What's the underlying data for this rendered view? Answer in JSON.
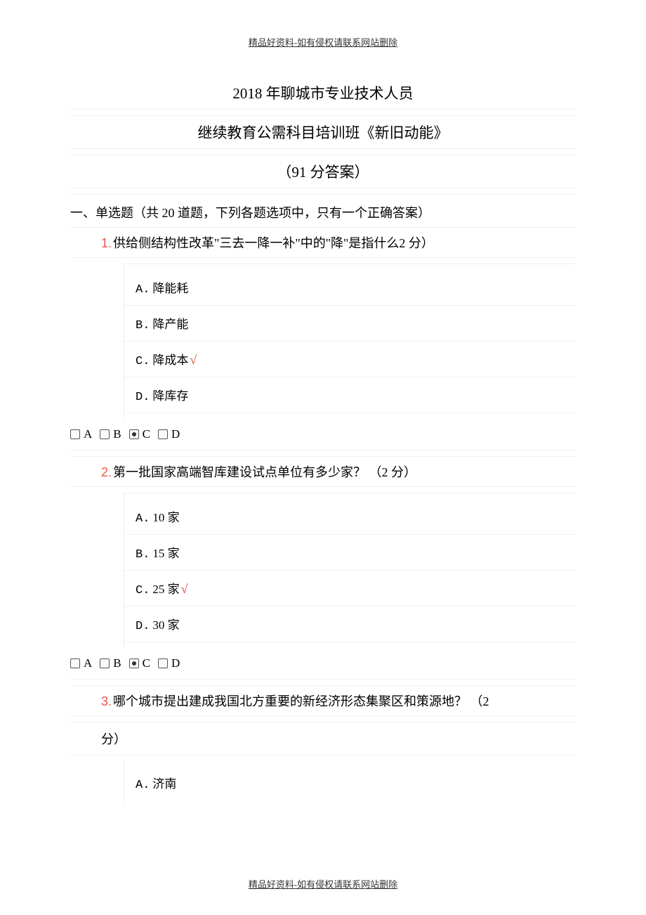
{
  "header_footer": "精品好资料-如有侵权请联系网站删除",
  "title_line1": "2018 年聊城市专业技术人员",
  "title_line2": "继续教育公需科目培训班《新旧动能》",
  "title_line3": "（91 分答案）",
  "section1_heading": "一、单选题（共 20 道题，下列各题选项中，只有一个正确答案）",
  "questions": [
    {
      "num": "1.",
      "text": "供给侧结构性改革\"三去一降一补\"中的\"降\"是指什么2 分）",
      "options": [
        {
          "label": "A.",
          "text": "降能耗",
          "correct": false
        },
        {
          "label": "B.",
          "text": "降产能",
          "correct": false
        },
        {
          "label": "C.",
          "text": "降成本",
          "correct": true
        },
        {
          "label": "D.",
          "text": "降库存",
          "correct": false
        }
      ],
      "selected": "C"
    },
    {
      "num": "2.",
      "text": "第一批国家高端智库建设试点单位有多少家？ （2 分）",
      "options": [
        {
          "label": "A.",
          "text": "10 家",
          "correct": false
        },
        {
          "label": "B.",
          "text": "15 家",
          "correct": false
        },
        {
          "label": "C.",
          "text": "25 家",
          "correct": true
        },
        {
          "label": "D.",
          "text": "30 家",
          "correct": false
        }
      ],
      "selected": "C"
    },
    {
      "num": "3.",
      "text_line1": "哪个城市提出建成我国北方重要的新经济形态集聚区和策源地？ （2",
      "text_line2": "分）",
      "options_partial": [
        {
          "label": "A.",
          "text": "济南"
        }
      ]
    }
  ],
  "radio_labels": [
    "A",
    "B",
    "C",
    "D"
  ],
  "colors": {
    "question_number": "#e8554a",
    "checkmark": "#d9433b",
    "border_light": "#f0f0f0",
    "text": "#000000"
  }
}
